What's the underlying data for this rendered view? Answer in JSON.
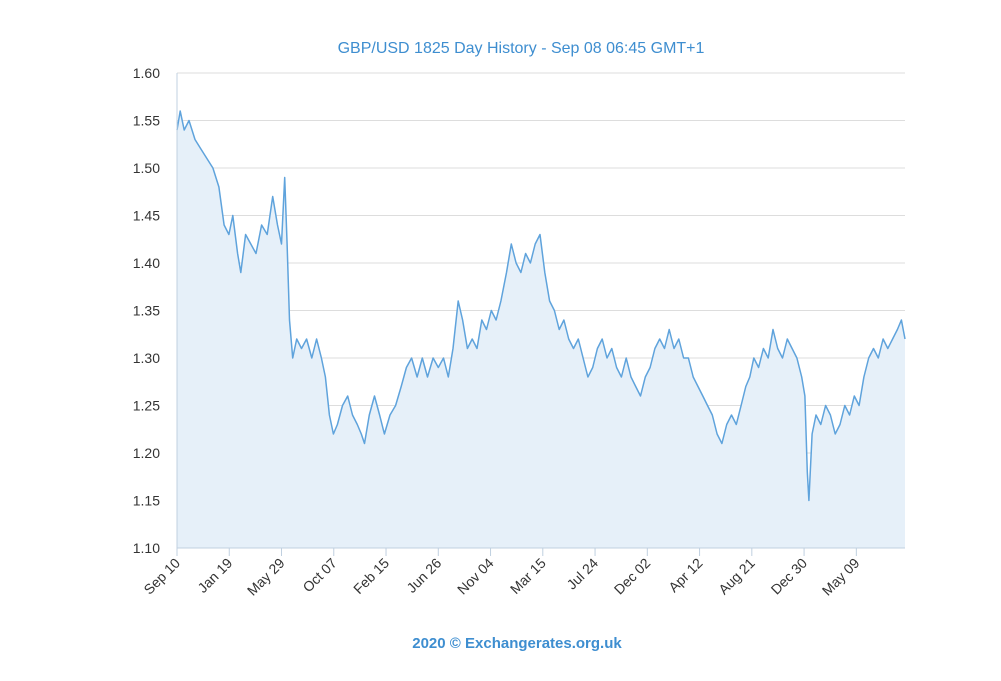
{
  "colors": {
    "line": "#5fa3dc",
    "area": "#e6f0f9",
    "title": "#3e8ed0",
    "grid": "#dddddd",
    "text": "#333333"
  },
  "chart_data": {
    "type": "area",
    "title": "GBP/USD 1825 Day History - Sep 08 06:45 GMT+1",
    "credit": "2020 © Exchangerates.org.uk",
    "xlabel": "",
    "ylabel": "",
    "ylim": [
      1.1,
      1.6
    ],
    "yticks": [
      "1.60",
      "1.55",
      "1.50",
      "1.45",
      "1.40",
      "1.35",
      "1.30",
      "1.25",
      "1.20",
      "1.15",
      "1.10"
    ],
    "ytick_values": [
      1.6,
      1.55,
      1.5,
      1.45,
      1.4,
      1.35,
      1.3,
      1.25,
      1.2,
      1.15,
      1.1
    ],
    "xlim_days": [
      0,
      1825
    ],
    "xticks": [
      {
        "label": "Sep 10",
        "day": 0
      },
      {
        "label": "Jan 19",
        "day": 131
      },
      {
        "label": "May 29",
        "day": 262
      },
      {
        "label": "Oct 07",
        "day": 393
      },
      {
        "label": "Feb 15",
        "day": 524
      },
      {
        "label": "Jun 26",
        "day": 655
      },
      {
        "label": "Nov 04",
        "day": 786
      },
      {
        "label": "Mar 15",
        "day": 917
      },
      {
        "label": "Jul 24",
        "day": 1048
      },
      {
        "label": "Dec 02",
        "day": 1179
      },
      {
        "label": "Apr 12",
        "day": 1310
      },
      {
        "label": "Aug 21",
        "day": 1441
      },
      {
        "label": "Dec 30",
        "day": 1572
      },
      {
        "label": "May 09",
        "day": 1703
      }
    ],
    "series": [
      {
        "name": "GBP/USD",
        "points": [
          [
            0,
            1.54
          ],
          [
            8,
            1.56
          ],
          [
            18,
            1.54
          ],
          [
            30,
            1.55
          ],
          [
            45,
            1.53
          ],
          [
            60,
            1.52
          ],
          [
            75,
            1.51
          ],
          [
            90,
            1.5
          ],
          [
            105,
            1.48
          ],
          [
            118,
            1.44
          ],
          [
            130,
            1.43
          ],
          [
            140,
            1.45
          ],
          [
            152,
            1.41
          ],
          [
            160,
            1.39
          ],
          [
            172,
            1.43
          ],
          [
            185,
            1.42
          ],
          [
            198,
            1.41
          ],
          [
            212,
            1.44
          ],
          [
            226,
            1.43
          ],
          [
            240,
            1.47
          ],
          [
            252,
            1.44
          ],
          [
            262,
            1.42
          ],
          [
            270,
            1.49
          ],
          [
            276,
            1.42
          ],
          [
            282,
            1.34
          ],
          [
            290,
            1.3
          ],
          [
            300,
            1.32
          ],
          [
            312,
            1.31
          ],
          [
            325,
            1.32
          ],
          [
            338,
            1.3
          ],
          [
            350,
            1.32
          ],
          [
            362,
            1.3
          ],
          [
            372,
            1.28
          ],
          [
            382,
            1.24
          ],
          [
            392,
            1.22
          ],
          [
            402,
            1.23
          ],
          [
            415,
            1.25
          ],
          [
            428,
            1.26
          ],
          [
            440,
            1.24
          ],
          [
            452,
            1.23
          ],
          [
            462,
            1.22
          ],
          [
            470,
            1.21
          ],
          [
            482,
            1.24
          ],
          [
            495,
            1.26
          ],
          [
            508,
            1.24
          ],
          [
            520,
            1.22
          ],
          [
            534,
            1.24
          ],
          [
            548,
            1.25
          ],
          [
            562,
            1.27
          ],
          [
            575,
            1.29
          ],
          [
            588,
            1.3
          ],
          [
            602,
            1.28
          ],
          [
            615,
            1.3
          ],
          [
            628,
            1.28
          ],
          [
            642,
            1.3
          ],
          [
            655,
            1.29
          ],
          [
            668,
            1.3
          ],
          [
            680,
            1.28
          ],
          [
            692,
            1.31
          ],
          [
            705,
            1.36
          ],
          [
            716,
            1.34
          ],
          [
            728,
            1.31
          ],
          [
            740,
            1.32
          ],
          [
            752,
            1.31
          ],
          [
            764,
            1.34
          ],
          [
            776,
            1.33
          ],
          [
            788,
            1.35
          ],
          [
            800,
            1.34
          ],
          [
            812,
            1.36
          ],
          [
            826,
            1.39
          ],
          [
            838,
            1.42
          ],
          [
            850,
            1.4
          ],
          [
            862,
            1.39
          ],
          [
            874,
            1.41
          ],
          [
            886,
            1.4
          ],
          [
            898,
            1.42
          ],
          [
            910,
            1.43
          ],
          [
            922,
            1.39
          ],
          [
            934,
            1.36
          ],
          [
            946,
            1.35
          ],
          [
            958,
            1.33
          ],
          [
            970,
            1.34
          ],
          [
            982,
            1.32
          ],
          [
            994,
            1.31
          ],
          [
            1006,
            1.32
          ],
          [
            1018,
            1.3
          ],
          [
            1030,
            1.28
          ],
          [
            1042,
            1.29
          ],
          [
            1054,
            1.31
          ],
          [
            1066,
            1.32
          ],
          [
            1078,
            1.3
          ],
          [
            1090,
            1.31
          ],
          [
            1102,
            1.29
          ],
          [
            1114,
            1.28
          ],
          [
            1126,
            1.3
          ],
          [
            1138,
            1.28
          ],
          [
            1150,
            1.27
          ],
          [
            1162,
            1.26
          ],
          [
            1174,
            1.28
          ],
          [
            1186,
            1.29
          ],
          [
            1198,
            1.31
          ],
          [
            1210,
            1.32
          ],
          [
            1222,
            1.31
          ],
          [
            1234,
            1.33
          ],
          [
            1246,
            1.31
          ],
          [
            1258,
            1.32
          ],
          [
            1270,
            1.3
          ],
          [
            1282,
            1.3
          ],
          [
            1294,
            1.28
          ],
          [
            1306,
            1.27
          ],
          [
            1318,
            1.26
          ],
          [
            1330,
            1.25
          ],
          [
            1342,
            1.24
          ],
          [
            1354,
            1.22
          ],
          [
            1366,
            1.21
          ],
          [
            1378,
            1.23
          ],
          [
            1390,
            1.24
          ],
          [
            1402,
            1.23
          ],
          [
            1414,
            1.25
          ],
          [
            1426,
            1.27
          ],
          [
            1436,
            1.28
          ],
          [
            1446,
            1.3
          ],
          [
            1458,
            1.29
          ],
          [
            1470,
            1.31
          ],
          [
            1482,
            1.3
          ],
          [
            1494,
            1.33
          ],
          [
            1506,
            1.31
          ],
          [
            1518,
            1.3
          ],
          [
            1530,
            1.32
          ],
          [
            1542,
            1.31
          ],
          [
            1554,
            1.3
          ],
          [
            1566,
            1.28
          ],
          [
            1574,
            1.26
          ],
          [
            1580,
            1.18
          ],
          [
            1584,
            1.15
          ],
          [
            1592,
            1.22
          ],
          [
            1602,
            1.24
          ],
          [
            1614,
            1.23
          ],
          [
            1626,
            1.25
          ],
          [
            1638,
            1.24
          ],
          [
            1650,
            1.22
          ],
          [
            1662,
            1.23
          ],
          [
            1674,
            1.25
          ],
          [
            1686,
            1.24
          ],
          [
            1698,
            1.26
          ],
          [
            1710,
            1.25
          ],
          [
            1722,
            1.28
          ],
          [
            1734,
            1.3
          ],
          [
            1746,
            1.31
          ],
          [
            1758,
            1.3
          ],
          [
            1770,
            1.32
          ],
          [
            1782,
            1.31
          ],
          [
            1794,
            1.32
          ],
          [
            1806,
            1.33
          ],
          [
            1816,
            1.34
          ],
          [
            1825,
            1.32
          ]
        ]
      }
    ]
  }
}
